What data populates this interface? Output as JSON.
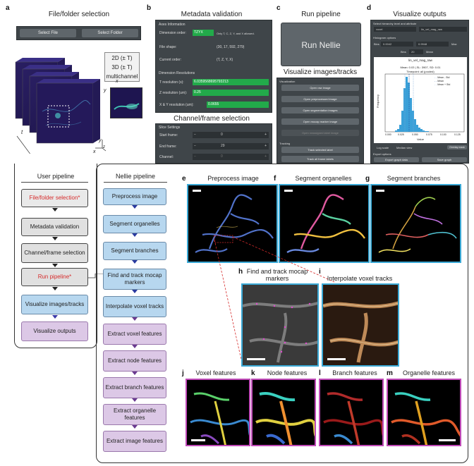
{
  "panels": {
    "a": "a",
    "b": "b",
    "c": "c",
    "d": "d",
    "e": "e",
    "f": "f",
    "g": "g",
    "h": "h",
    "i": "i",
    "j": "j",
    "k": "k",
    "l": "l",
    "m": "m"
  },
  "a": {
    "title": "File/folder selection",
    "select_file": "Select File",
    "select_folder": "Select Folder",
    "dims": [
      "2D (± T)",
      "3D (± T)",
      "multichannel"
    ],
    "axis_t": "t",
    "axis_x": "x",
    "axis_y": "y",
    "axis_z": "z"
  },
  "b": {
    "title": "Metadata validation",
    "axes_info": "Axes Information",
    "dim_order_label": "Dimension order:",
    "dim_order_value": "TZYX",
    "dim_order_note": "Only T, C, Z, Y, and X allowed.",
    "file_shape_label": "File shape:",
    "file_shape_value": "(30, 17, 592, 279)",
    "current_order_label": "Current order:",
    "current_order_value": "(T, Z, Y, X)",
    "dim_res": "Dimension Resolutions",
    "t_res_label": "T resolution (s):",
    "t_res_value": "6.0359568695793213",
    "z_res_label": "Z resolution (um):",
    "z_res_value": "0.25",
    "xy_res_label": "X & Y resolution (um):",
    "xy_res_value": "0.0655",
    "channel_title": "Channel/frame selection",
    "slice_settings": "Slice Settings",
    "start_label": "Start frame:",
    "start_value": "0",
    "end_label": "End frame:",
    "end_value": "29",
    "channel_label": "Channel:",
    "channel_value": "0"
  },
  "c": {
    "title": "Run pipeline",
    "run_button": "Run Nellie",
    "viz_title": "Visualize images/tracks",
    "visualization": "Visualization",
    "buttons": [
      "Open raw image",
      "Open preprocessed image",
      "Open segmentation images",
      "Open mocap marker image",
      "Open reassigned label image"
    ],
    "tracking": "Tracking",
    "track_buttons": [
      "Track selected label",
      "Track all frame labels"
    ]
  },
  "d": {
    "title": "Visualize outputs",
    "select_hier": "Select hierarchy level and attribute",
    "level": "voxel",
    "attribute": "lin_vel_mag_raw",
    "histogram_options": "Histogram options",
    "bins_label": "Bins",
    "bins_value": "20",
    "min_label": "Min",
    "min_value": "0.0042",
    "max_value": "0.9948",
    "max_label": "Max",
    "mean_label": "Mean",
    "plot_attr": "lin_vel_mag_raw",
    "plot_stats": "Mean: 0.03 | SL: 3907, SD: 0.01",
    "plot_timepoint": "Timepoint: all (pooled)",
    "ylabel": "Frequency",
    "xlabel": "Value",
    "x_ticks": [
      "0.000",
      "0.025",
      "0.050",
      "0.075",
      "0.100",
      "0.125"
    ],
    "legend": [
      "Mean - Std",
      "Mean",
      "Mean + Std"
    ],
    "log_scale": "Log scale",
    "median_view": "Median view",
    "overlay": "Overlay mask",
    "export_options": "Export options",
    "export_graph": "Export graph data",
    "save_graph": "Save graph"
  },
  "user_pipeline": {
    "title": "User pipeline",
    "steps": [
      "File/folder selection*",
      "Metadata validation",
      "Channel/frame selection",
      "Run pipeline*",
      "Visualize images/tracks",
      "Visualize outputs"
    ]
  },
  "nellie_pipeline": {
    "title": "Nellie pipeline",
    "steps": [
      "Preprocess image",
      "Segment organelles",
      "Segment branches",
      "Find and track mocap markers",
      "Interpolate voxel tracks",
      "Extract voxel features",
      "Extract node features",
      "Extract branch features",
      "Extract organelle features",
      "Extract image features"
    ]
  },
  "images": {
    "e": "Preprocess image",
    "f": "Segment organelles",
    "g": "Segment branches",
    "h": "Find and track mocap markers",
    "i": "Interpolate voxel tracks",
    "j": "Voxel features",
    "k": "Node features",
    "l": "Branch features",
    "m": "Organelle features"
  },
  "colors": {
    "user_red": "#d62b2b",
    "nellie_blue": "#b7d7ef",
    "purple": "#dcc8e6",
    "cyan_border": "#3aa9d6",
    "magenta_border": "#c04ab8",
    "dark_panel": "#3f4549"
  }
}
